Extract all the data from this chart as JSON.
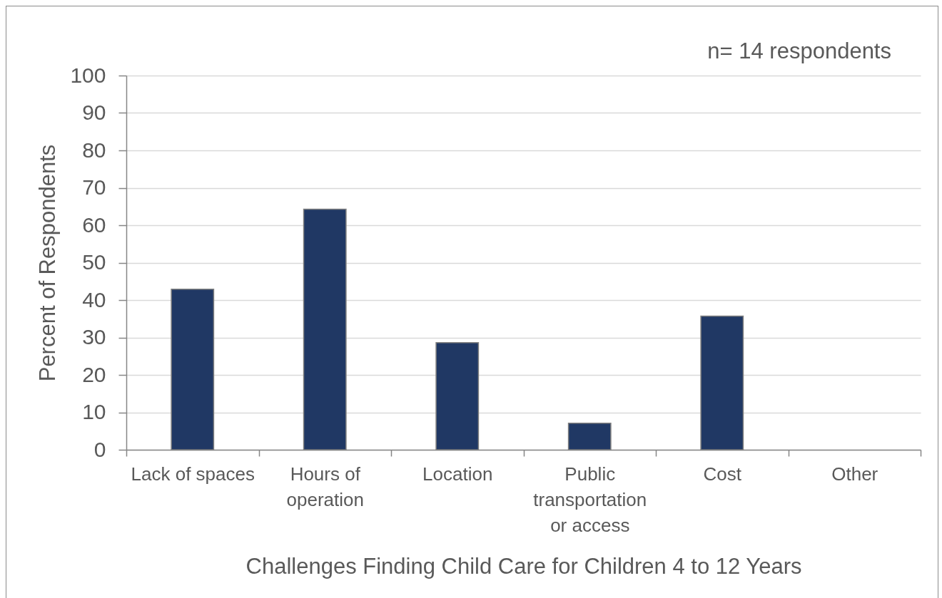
{
  "chart_data": {
    "type": "bar",
    "xlabel": "Challenges Finding Child Care for Children 4 to 12 Years",
    "ylabel": "Percent of Respondents",
    "annotations": [
      "n= 14 respondents"
    ],
    "categories": [
      "Lack of spaces",
      "Hours of operation",
      "Location",
      "Public transportation or access",
      "Cost",
      "Other"
    ],
    "values": [
      42.9,
      64.3,
      28.6,
      7.1,
      35.7,
      0
    ],
    "color": "#203864",
    "ylim": [
      0,
      100
    ],
    "yticks": [
      0,
      10,
      20,
      30,
      40,
      50,
      60,
      70,
      80,
      90,
      100
    ],
    "grid": "y"
  }
}
